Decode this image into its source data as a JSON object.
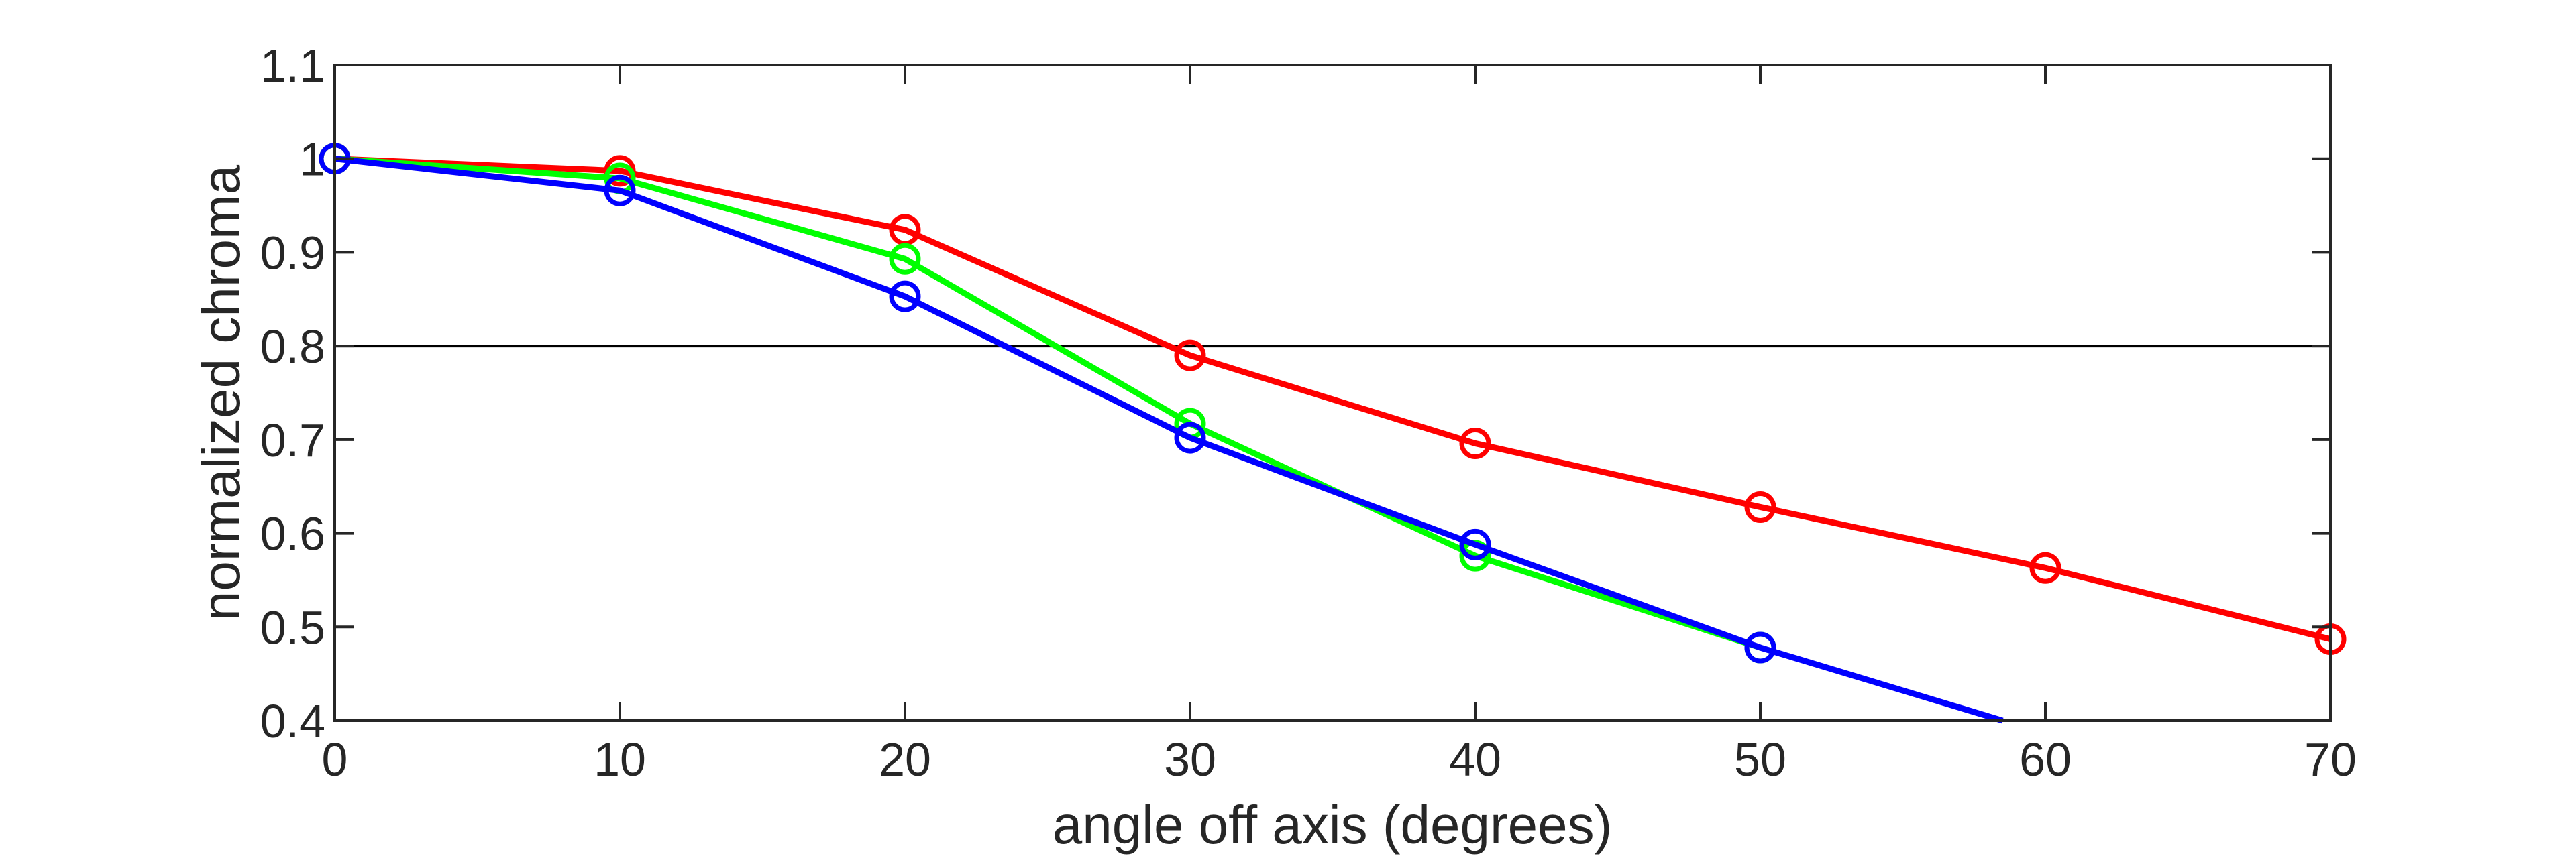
{
  "chart_data": {
    "type": "line",
    "title": "",
    "xlabel": "angle off axis (degrees)",
    "ylabel": "normalized chroma",
    "xlim": [
      0,
      70
    ],
    "ylim": [
      0.4,
      1.1
    ],
    "xticks": [
      0,
      10,
      20,
      30,
      40,
      50,
      60,
      70
    ],
    "yticks": [
      0.4,
      0.5,
      0.6,
      0.7,
      0.8,
      0.9,
      1,
      1.1
    ],
    "xtick_labels": [
      "0",
      "10",
      "20",
      "30",
      "40",
      "50",
      "60",
      "70"
    ],
    "ytick_labels": [
      "0.4",
      "0.5",
      "0.6",
      "0.7",
      "0.8",
      "0.9",
      "1",
      "1.1"
    ],
    "grid": false,
    "legend": "none",
    "reference_line": {
      "y": 0.8,
      "color": "#000000"
    },
    "series": [
      {
        "color": "#ff0000",
        "x": [
          0,
          10,
          20,
          30,
          40,
          50,
          60,
          70
        ],
        "values": [
          1.0,
          0.987,
          0.924,
          0.79,
          0.696,
          0.628,
          0.563,
          0.487
        ]
      },
      {
        "color": "#00ff00",
        "x": [
          0,
          10,
          20,
          30,
          40,
          50
        ],
        "values": [
          1.0,
          0.979,
          0.893,
          0.717,
          0.576,
          0.478
        ]
      },
      {
        "color": "#0000ff",
        "x": [
          0,
          10,
          20,
          30,
          40,
          50,
          58.5
        ],
        "values": [
          1.0,
          0.966,
          0.853,
          0.702,
          0.588,
          0.478,
          0.4
        ],
        "markers": [
          true,
          true,
          true,
          true,
          true,
          true,
          false
        ]
      }
    ]
  }
}
